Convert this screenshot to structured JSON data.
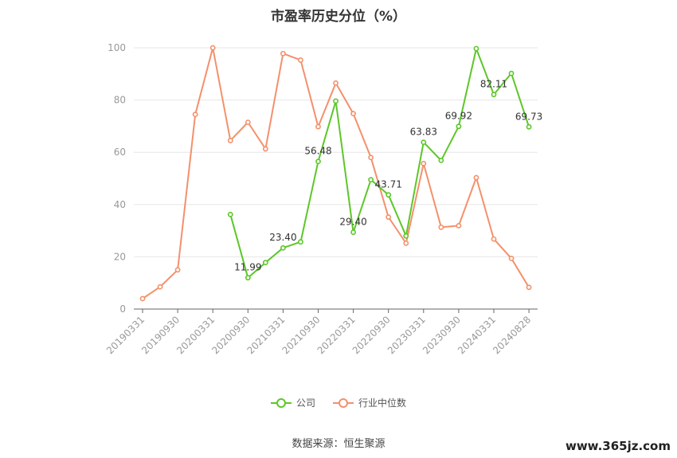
{
  "title": "市盈率历史分位（%）",
  "source_text": "数据来源：恒生聚源",
  "watermark": "www.365jz.com",
  "legend": [
    {
      "name": "公司",
      "color": "#5cc728"
    },
    {
      "name": "行业中位数",
      "color": "#f4906b"
    }
  ],
  "chart_data": {
    "type": "line",
    "title": "市盈率历史分位（%）",
    "x": [
      "20190331",
      "20190630",
      "20190930",
      "20191231",
      "20200331",
      "20200630",
      "20200930",
      "20201231",
      "20210331",
      "20210630",
      "20210930",
      "20211231",
      "20220331",
      "20220630",
      "20220930",
      "20221231",
      "20230331",
      "20230630",
      "20230930",
      "20231231",
      "20240331",
      "20240630",
      "20240828"
    ],
    "x_tick_labels": [
      "20190331",
      "20190930",
      "20200331",
      "20200930",
      "20210331",
      "20210930",
      "20220331",
      "20220930",
      "20230331",
      "20230930",
      "20240331",
      "20240828"
    ],
    "y_ticks": [
      "0",
      "20",
      "40",
      "60",
      "80",
      "100"
    ],
    "ylim": [
      0,
      100
    ],
    "grid": true,
    "legend_position": "bottom",
    "series": [
      {
        "name": "公司",
        "color": "#5cc728",
        "values": [
          null,
          null,
          null,
          null,
          null,
          36.2,
          11.99,
          17.8,
          23.4,
          25.7,
          56.48,
          79.6,
          29.4,
          49.5,
          43.71,
          28.0,
          63.83,
          56.9,
          69.92,
          99.7,
          82.11,
          90.2,
          69.73
        ],
        "labels": {
          "6": "11.99",
          "8": "23.40",
          "10": "56.48",
          "12": "29.40",
          "14": "43.71",
          "16": "63.83",
          "18": "69.92",
          "20": "82.11",
          "22": "69.73"
        }
      },
      {
        "name": "行业中位数",
        "color": "#f4906b",
        "values": [
          4.0,
          8.5,
          15.0,
          74.5,
          100.0,
          64.5,
          71.5,
          61.3,
          97.8,
          95.3,
          69.8,
          86.5,
          74.8,
          58.0,
          35.2,
          25.2,
          55.7,
          31.3,
          31.9,
          50.3,
          26.8,
          19.4,
          8.3
        ]
      }
    ]
  }
}
